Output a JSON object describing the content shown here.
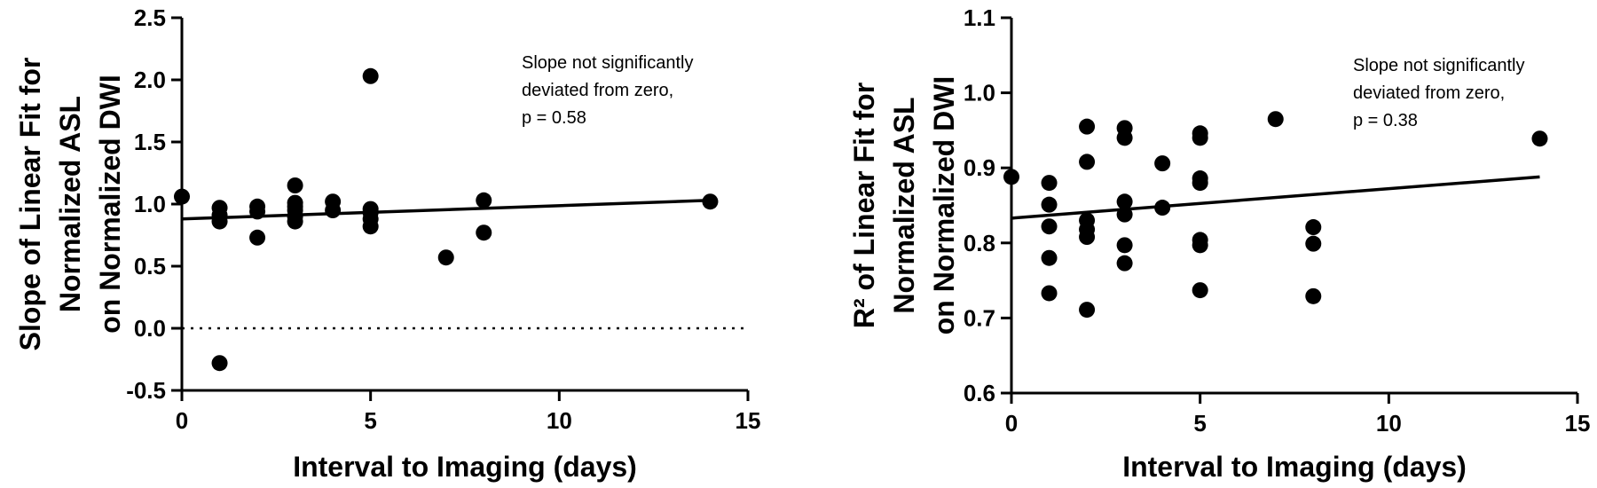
{
  "chart_data": [
    {
      "type": "scatter",
      "title": "",
      "xlabel": "Interval to Imaging (days)",
      "ylabel_lines": [
        "Slope of Linear Fit for",
        "Normalized ASL",
        "on Normalized DWI"
      ],
      "xlim": [
        0,
        15
      ],
      "ylim": [
        -0.5,
        2.5
      ],
      "xticks": [
        0,
        5,
        10,
        15
      ],
      "xtick_labels": [
        "0",
        "5",
        "10",
        "15"
      ],
      "yticks": [
        -0.5,
        0.0,
        0.5,
        1.0,
        1.5,
        2.0,
        2.5
      ],
      "ytick_labels": [
        "-0.5",
        "0.0",
        "0.5",
        "1.0",
        "1.5",
        "2.0",
        "2.5"
      ],
      "grid": false,
      "reference_line": {
        "y": 0,
        "style": "dotted"
      },
      "fit_line": {
        "x": [
          0,
          14
        ],
        "y": [
          0.88,
          1.03
        ]
      },
      "annotation_lines": [
        "Slope not significantly",
        "deviated from zero,",
        "p = 0.58"
      ],
      "points": [
        {
          "x": 0,
          "y": 1.06
        },
        {
          "x": 1,
          "y": 0.97
        },
        {
          "x": 1,
          "y": 0.91
        },
        {
          "x": 1,
          "y": 0.86
        },
        {
          "x": 1,
          "y": -0.28
        },
        {
          "x": 2,
          "y": 0.98
        },
        {
          "x": 2,
          "y": 0.94
        },
        {
          "x": 2,
          "y": 0.73
        },
        {
          "x": 3,
          "y": 1.15
        },
        {
          "x": 3,
          "y": 1.01
        },
        {
          "x": 3,
          "y": 0.98
        },
        {
          "x": 3,
          "y": 0.95
        },
        {
          "x": 3,
          "y": 0.9
        },
        {
          "x": 3,
          "y": 0.86
        },
        {
          "x": 4,
          "y": 1.02
        },
        {
          "x": 4,
          "y": 0.95
        },
        {
          "x": 5,
          "y": 2.03
        },
        {
          "x": 5,
          "y": 0.96
        },
        {
          "x": 5,
          "y": 0.93
        },
        {
          "x": 5,
          "y": 0.88
        },
        {
          "x": 5,
          "y": 0.82
        },
        {
          "x": 7,
          "y": 0.57
        },
        {
          "x": 8,
          "y": 1.03
        },
        {
          "x": 8,
          "y": 0.77
        },
        {
          "x": 14,
          "y": 1.02
        }
      ]
    },
    {
      "type": "scatter",
      "title": "",
      "xlabel": "Interval to Imaging (days)",
      "ylabel_lines": [
        "R² of Linear Fit for",
        "Normalized ASL",
        "on Normalized DWI"
      ],
      "xlim": [
        0,
        15
      ],
      "ylim": [
        0.6,
        1.1
      ],
      "xticks": [
        0,
        5,
        10,
        15
      ],
      "xtick_labels": [
        "0",
        "5",
        "10",
        "15"
      ],
      "yticks": [
        0.6,
        0.7,
        0.8,
        0.9,
        1.0,
        1.1
      ],
      "ytick_labels": [
        "0.6",
        "0.7",
        "0.8",
        "0.9",
        "1.0",
        "1.1"
      ],
      "grid": false,
      "fit_line": {
        "x": [
          0,
          14
        ],
        "y": [
          0.833,
          0.888
        ]
      },
      "annotation_lines": [
        "Slope not significantly",
        "deviated from zero,",
        "p = 0.38"
      ],
      "points": [
        {
          "x": 0,
          "y": 0.888
        },
        {
          "x": 1,
          "y": 0.88
        },
        {
          "x": 1,
          "y": 0.851
        },
        {
          "x": 1,
          "y": 0.822
        },
        {
          "x": 1,
          "y": 0.78
        },
        {
          "x": 1,
          "y": 0.733
        },
        {
          "x": 2,
          "y": 0.955
        },
        {
          "x": 2,
          "y": 0.908
        },
        {
          "x": 2,
          "y": 0.83
        },
        {
          "x": 2,
          "y": 0.818
        },
        {
          "x": 2,
          "y": 0.808
        },
        {
          "x": 2,
          "y": 0.711
        },
        {
          "x": 3,
          "y": 0.953
        },
        {
          "x": 3,
          "y": 0.94
        },
        {
          "x": 3,
          "y": 0.855
        },
        {
          "x": 3,
          "y": 0.838
        },
        {
          "x": 3,
          "y": 0.797
        },
        {
          "x": 3,
          "y": 0.773
        },
        {
          "x": 4,
          "y": 0.906
        },
        {
          "x": 4,
          "y": 0.847
        },
        {
          "x": 5,
          "y": 0.946
        },
        {
          "x": 5,
          "y": 0.94
        },
        {
          "x": 5,
          "y": 0.886
        },
        {
          "x": 5,
          "y": 0.88
        },
        {
          "x": 5,
          "y": 0.804
        },
        {
          "x": 5,
          "y": 0.797
        },
        {
          "x": 5,
          "y": 0.737
        },
        {
          "x": 7,
          "y": 0.965
        },
        {
          "x": 8,
          "y": 0.821
        },
        {
          "x": 8,
          "y": 0.799
        },
        {
          "x": 8,
          "y": 0.729
        },
        {
          "x": 14,
          "y": 0.939
        }
      ]
    }
  ]
}
